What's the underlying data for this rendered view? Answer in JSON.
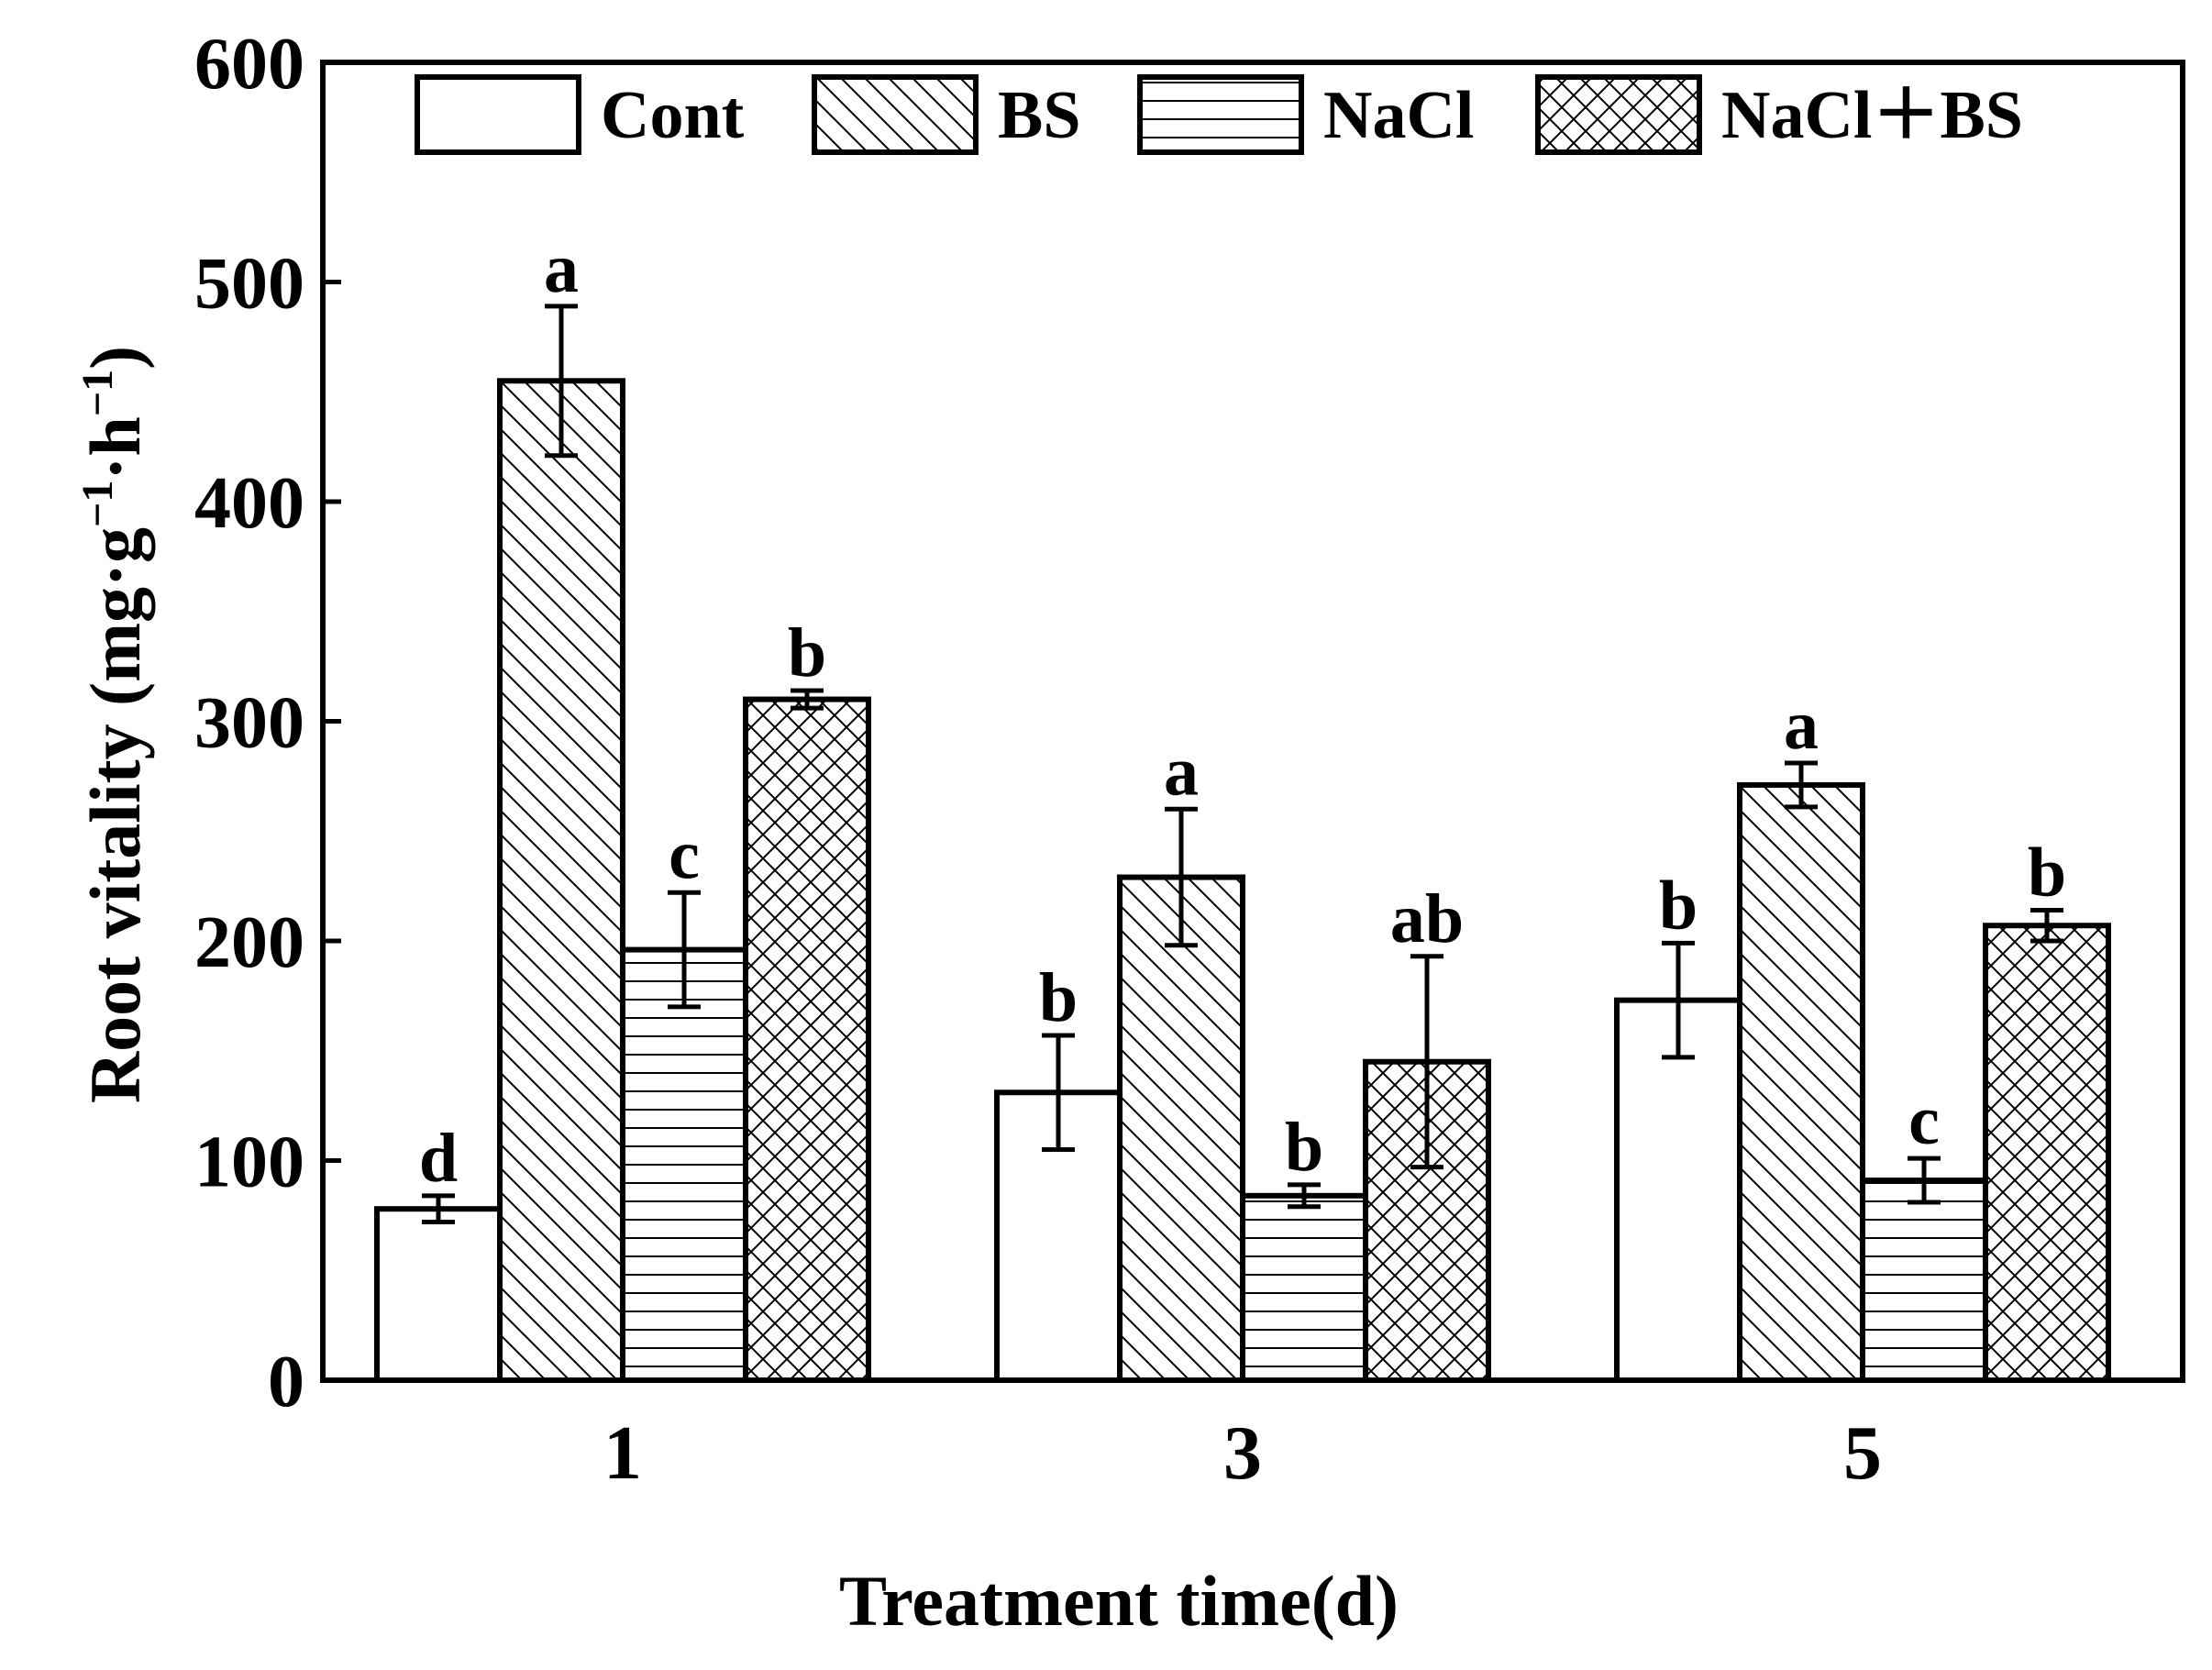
{
  "chart_data": {
    "type": "bar",
    "title": "",
    "xlabel": "Treatment time(d)",
    "ylabel_main": "Root vitality (mg·g",
    "ylabel_sup1": "−1",
    "ylabel_mid": "·h",
    "ylabel_sup2": "−1",
    "ylabel_end": ")",
    "ylim": [
      0,
      600
    ],
    "yticks": [
      "0",
      "100",
      "200",
      "300",
      "400",
      "500",
      "600"
    ],
    "legend_position": "top",
    "categories": [
      "1",
      "3",
      "5"
    ],
    "series": [
      {
        "name": "Cont",
        "pattern": "none",
        "values": [
          78,
          131,
          173
        ],
        "errors": [
          6,
          26,
          26
        ],
        "letters": [
          "d",
          "b",
          "b"
        ]
      },
      {
        "name": "BS",
        "pattern": "diag-back",
        "values": [
          455,
          229,
          271
        ],
        "errors": [
          34,
          31,
          10
        ],
        "letters": [
          "a",
          "a",
          "a"
        ]
      },
      {
        "name": "NaCl",
        "pattern": "horizontal",
        "values": [
          196,
          84,
          91
        ],
        "errors": [
          26,
          5,
          10
        ],
        "letters": [
          "c",
          "b",
          "c"
        ]
      },
      {
        "name": "NaCl＋BS",
        "pattern": "crosshatch",
        "values": [
          310,
          145,
          207
        ],
        "errors": [
          4,
          48,
          7
        ],
        "letters": [
          "b",
          "ab",
          "b"
        ]
      }
    ]
  },
  "colors": {
    "stroke": "#000000",
    "background": "#ffffff",
    "fill": "#ffffff"
  }
}
